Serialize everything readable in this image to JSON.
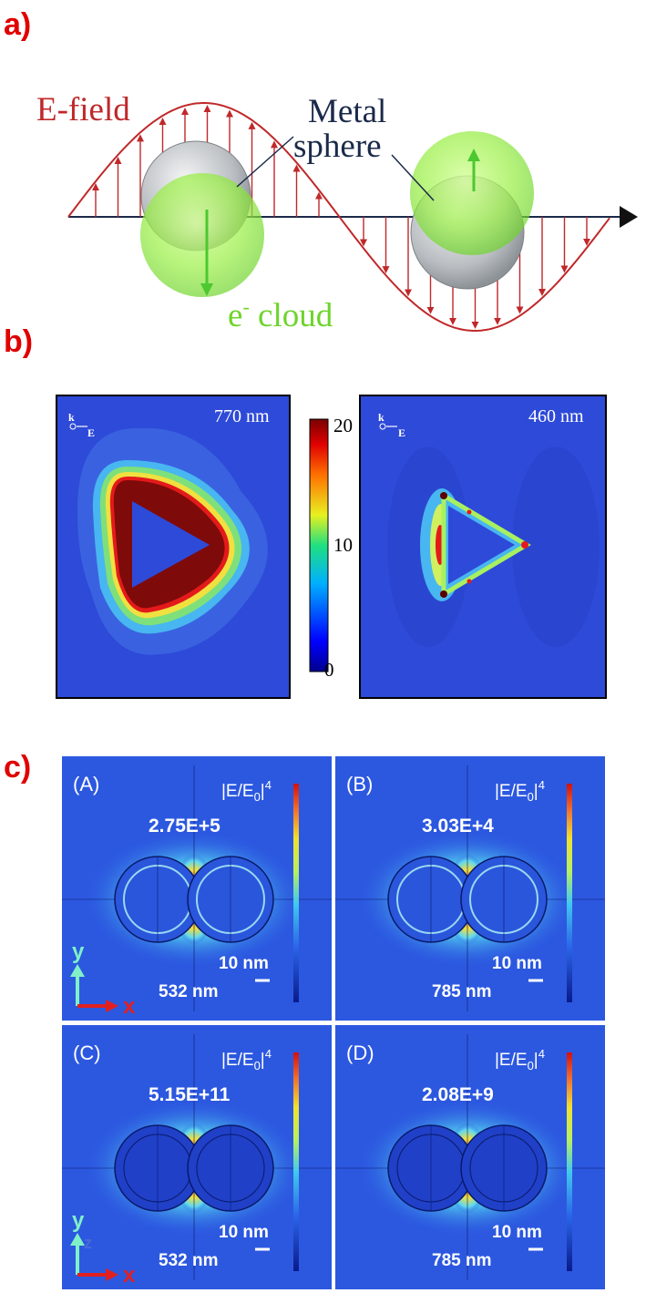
{
  "panel_a": {
    "label": "a)",
    "efield_label": "E-field",
    "metal_label_line1": "Metal",
    "metal_label_line2": "sphere",
    "cloud_label_e": "e",
    "cloud_label_sup": "-",
    "cloud_label_rest": " cloud",
    "colors": {
      "wave": "#c0282a",
      "cloud": "#8ee83a",
      "metal": "#b0b4b8",
      "axis": "#1b2a4a"
    }
  },
  "panel_b": {
    "label": "b)",
    "left_wavelength": "770 nm",
    "right_wavelength": "460 nm",
    "k_label": "k",
    "e_label": "E",
    "colorbar_ticks": [
      "20",
      "10",
      "0"
    ]
  },
  "panel_c": {
    "label": "c)",
    "quantity_base": "|E/E",
    "quantity_sub": "0",
    "quantity_tail": "|",
    "quantity_sup": "4",
    "scale_bar": "10 nm",
    "axis_y": "y",
    "axis_x": "x",
    "axis_z": "z",
    "subpanels": [
      {
        "tag": "(A)",
        "enhancement": "2.75E+5",
        "wavelength": "532 nm"
      },
      {
        "tag": "(B)",
        "enhancement": "3.03E+4",
        "wavelength": "785 nm"
      },
      {
        "tag": "(C)",
        "enhancement": "5.15E+11",
        "wavelength": "532 nm"
      },
      {
        "tag": "(D)",
        "enhancement": "2.08E+9",
        "wavelength": "785 nm"
      }
    ]
  }
}
